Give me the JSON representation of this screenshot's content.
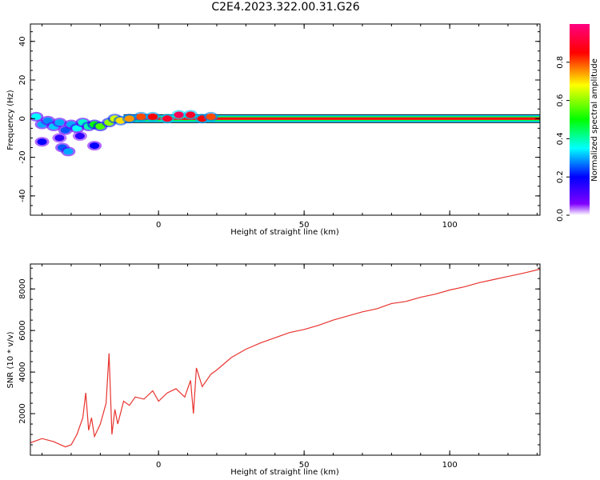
{
  "title": "C2E4.2023.322.00.31.G26",
  "chart_data": [
    {
      "type": "heatmap",
      "xlabel": "Height of straight line (km)",
      "ylabel": "Frequency (Hz)",
      "xlim": [
        -44,
        131
      ],
      "ylim": [
        -50,
        49
      ],
      "xticks": [
        0,
        50,
        100
      ],
      "yticks": [
        -40,
        -20,
        0,
        20,
        40
      ],
      "colorbar": {
        "label": "Normalized spectral amplitude",
        "range": [
          0.0,
          1.0
        ],
        "ticks": [
          0.0,
          0.2,
          0.4,
          0.6,
          0.8
        ],
        "colors": [
          "#ffffff",
          "#7f00ff",
          "#0000ff",
          "#00ffff",
          "#00ff00",
          "#ffff00",
          "#ff0000",
          "#ff0080"
        ]
      },
      "carrier": {
        "x_start": -12,
        "x_end": 131,
        "frequency": 0,
        "amplitude": 1.0
      },
      "blobs": [
        {
          "x": -42,
          "y": 1,
          "a": 0.35
        },
        {
          "x": -40,
          "y": -3,
          "a": 0.3
        },
        {
          "x": -38,
          "y": -1,
          "a": 0.28
        },
        {
          "x": -36,
          "y": -4,
          "a": 0.32
        },
        {
          "x": -34,
          "y": -2,
          "a": 0.3
        },
        {
          "x": -32,
          "y": -6,
          "a": 0.25
        },
        {
          "x": -30,
          "y": -3,
          "a": 0.3
        },
        {
          "x": -28,
          "y": -5,
          "a": 0.35
        },
        {
          "x": -26,
          "y": -2,
          "a": 0.38
        },
        {
          "x": -24,
          "y": -4,
          "a": 0.4
        },
        {
          "x": -22,
          "y": -3,
          "a": 0.5
        },
        {
          "x": -20,
          "y": -4,
          "a": 0.55
        },
        {
          "x": -17,
          "y": -2,
          "a": 0.6
        },
        {
          "x": -15,
          "y": 0,
          "a": 0.65
        },
        {
          "x": -13,
          "y": -1,
          "a": 0.7
        },
        {
          "x": -10,
          "y": 0,
          "a": 0.75
        },
        {
          "x": -6,
          "y": 1,
          "a": 0.8
        },
        {
          "x": -2,
          "y": 1,
          "a": 0.85
        },
        {
          "x": 3,
          "y": 0,
          "a": 0.9
        },
        {
          "x": 7,
          "y": 2,
          "a": 0.95
        },
        {
          "x": 11,
          "y": 2,
          "a": 0.9
        },
        {
          "x": 15,
          "y": 0,
          "a": 0.85
        },
        {
          "x": 18,
          "y": 1,
          "a": 0.8
        },
        {
          "x": -40,
          "y": -12,
          "a": 0.2
        },
        {
          "x": -33,
          "y": -15,
          "a": 0.25
        },
        {
          "x": -31,
          "y": -17,
          "a": 0.3
        },
        {
          "x": -22,
          "y": -14,
          "a": 0.2
        },
        {
          "x": -34,
          "y": -10,
          "a": 0.15
        },
        {
          "x": -27,
          "y": -9,
          "a": 0.15
        }
      ]
    },
    {
      "type": "line",
      "xlabel": "Height of straight line (km)",
      "ylabel": "SNR (10 * v/v)",
      "xlim": [
        -44,
        131
      ],
      "ylim": [
        0,
        9200
      ],
      "xticks": [
        0,
        50,
        100
      ],
      "yticks": [
        2000,
        4000,
        6000,
        8000
      ],
      "color": "#e8342f",
      "x": [
        -44,
        -40,
        -36,
        -32,
        -30,
        -28,
        -26,
        -25,
        -24,
        -23,
        -22,
        -20,
        -18,
        -17,
        -16,
        -15,
        -14,
        -12,
        -10,
        -8,
        -5,
        -2,
        0,
        3,
        6,
        9,
        11,
        12,
        13,
        15,
        18,
        20,
        25,
        30,
        35,
        40,
        45,
        50,
        55,
        60,
        65,
        70,
        75,
        80,
        85,
        90,
        95,
        100,
        105,
        110,
        115,
        120,
        125,
        131
      ],
      "y": [
        600,
        800,
        650,
        400,
        500,
        1000,
        1800,
        3000,
        1200,
        1800,
        900,
        1500,
        2500,
        4900,
        1000,
        2200,
        1500,
        2600,
        2400,
        2800,
        2700,
        3100,
        2600,
        3000,
        3200,
        2800,
        3600,
        2000,
        4200,
        3300,
        3900,
        4100,
        4700,
        5100,
        5400,
        5650,
        5900,
        6050,
        6250,
        6500,
        6700,
        6900,
        7050,
        7300,
        7400,
        7600,
        7750,
        7950,
        8100,
        8300,
        8450,
        8600,
        8750,
        8950
      ]
    }
  ]
}
